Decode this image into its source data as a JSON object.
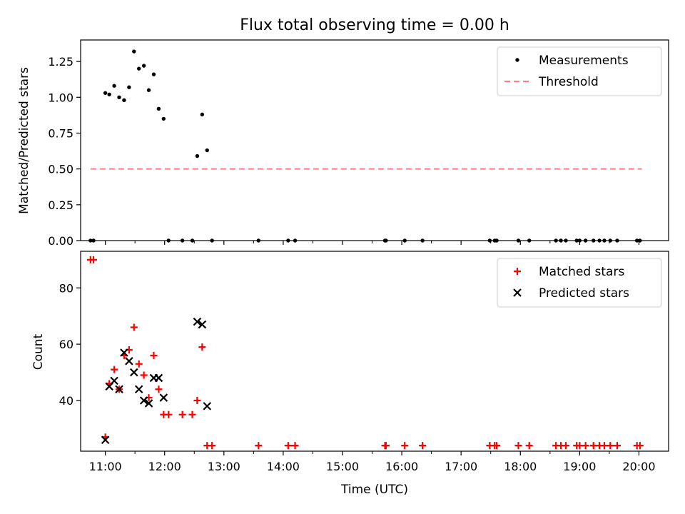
{
  "chart_data": [
    {
      "type": "scatter",
      "title": "Flux total observing time = 0.00 h",
      "xlabel": "",
      "ylabel": "Matched/Predicted stars",
      "xlim": [
        "10:35",
        "20:30"
      ],
      "ylim": [
        0,
        1.4
      ],
      "yticks": [
        0.0,
        0.25,
        0.5,
        0.75,
        1.0,
        1.25
      ],
      "ytick_labels": [
        "0.00",
        "0.25",
        "0.50",
        "0.75",
        "1.00",
        "1.25"
      ],
      "grid": false,
      "legend": {
        "placement": "top-right",
        "entries": [
          "Measurements",
          "Threshold"
        ]
      },
      "series": [
        {
          "name": "Measurements",
          "color": "#000000",
          "marker": "dot",
          "points": [
            [
              "10:45",
              0.0
            ],
            [
              "10:48",
              0.0
            ],
            [
              "11:00",
              1.03
            ],
            [
              "11:04",
              1.02
            ],
            [
              "11:09",
              1.08
            ],
            [
              "11:14",
              1.0
            ],
            [
              "11:19",
              0.98
            ],
            [
              "11:24",
              1.07
            ],
            [
              "11:29",
              1.32
            ],
            [
              "11:34",
              1.2
            ],
            [
              "11:39",
              1.22
            ],
            [
              "11:44",
              1.05
            ],
            [
              "11:49",
              1.16
            ],
            [
              "11:54",
              0.92
            ],
            [
              "11:59",
              0.85
            ],
            [
              "12:04",
              0.0
            ],
            [
              "12:18",
              0.0
            ],
            [
              "12:28",
              0.0
            ],
            [
              "12:33",
              0.59
            ],
            [
              "12:38",
              0.88
            ],
            [
              "12:43",
              0.63
            ],
            [
              "12:48",
              0.0
            ],
            [
              "13:35",
              0.0
            ],
            [
              "14:05",
              0.0
            ],
            [
              "14:12",
              0.0
            ],
            [
              "15:43",
              0.0
            ],
            [
              "15:44",
              0.0
            ],
            [
              "16:03",
              0.0
            ],
            [
              "16:21",
              0.0
            ],
            [
              "17:29",
              0.0
            ],
            [
              "17:34",
              0.0
            ],
            [
              "17:36",
              0.0
            ],
            [
              "17:58",
              0.0
            ],
            [
              "18:09",
              0.0
            ],
            [
              "18:36",
              0.0
            ],
            [
              "18:41",
              0.0
            ],
            [
              "18:46",
              0.0
            ],
            [
              "18:57",
              0.0
            ],
            [
              "19:00",
              0.0
            ],
            [
              "19:06",
              0.0
            ],
            [
              "19:14",
              0.0
            ],
            [
              "19:20",
              0.0
            ],
            [
              "19:25",
              0.0
            ],
            [
              "19:31",
              0.0
            ],
            [
              "19:38",
              0.0
            ],
            [
              "19:58",
              0.0
            ],
            [
              "20:01",
              0.0
            ]
          ]
        },
        {
          "name": "Threshold",
          "color": "#ff7f7f",
          "style": "dashed",
          "points": [
            [
              "10:45",
              0.5
            ],
            [
              "20:03",
              0.5
            ]
          ]
        }
      ]
    },
    {
      "type": "scatter",
      "title": "",
      "xlabel": "Time (UTC)",
      "ylabel": "Count",
      "xlim": [
        "10:35",
        "20:30"
      ],
      "ylim": [
        22,
        93
      ],
      "yticks": [
        40,
        60,
        80
      ],
      "ytick_labels": [
        "40",
        "60",
        "80"
      ],
      "xticks": [
        "11:00",
        "12:00",
        "13:00",
        "14:00",
        "15:00",
        "16:00",
        "17:00",
        "18:00",
        "19:00",
        "20:00"
      ],
      "xtick_labels": [
        "11:00",
        "12:00",
        "13:00",
        "14:00",
        "15:00",
        "16:00",
        "17:00",
        "18:00",
        "19:00",
        "20:00"
      ],
      "grid": false,
      "legend": {
        "placement": "top-right",
        "entries": [
          "Matched stars",
          "Predicted stars"
        ]
      },
      "series": [
        {
          "name": "Matched stars",
          "color": "#ff0000",
          "marker": "plus",
          "points": [
            [
              "10:45",
              90
            ],
            [
              "10:48",
              90
            ],
            [
              "11:00",
              27
            ],
            [
              "11:04",
              46
            ],
            [
              "11:09",
              51
            ],
            [
              "11:14",
              44
            ],
            [
              "11:19",
              56
            ],
            [
              "11:24",
              58
            ],
            [
              "11:29",
              66
            ],
            [
              "11:34",
              53
            ],
            [
              "11:39",
              49
            ],
            [
              "11:44",
              41
            ],
            [
              "11:49",
              56
            ],
            [
              "11:54",
              44
            ],
            [
              "11:59",
              35
            ],
            [
              "12:04",
              35
            ],
            [
              "12:18",
              35
            ],
            [
              "12:28",
              35
            ],
            [
              "12:33",
              40
            ],
            [
              "12:38",
              59
            ],
            [
              "12:43",
              24
            ],
            [
              "12:48",
              24
            ],
            [
              "13:35",
              24
            ],
            [
              "14:05",
              24
            ],
            [
              "14:12",
              24
            ],
            [
              "15:43",
              24
            ],
            [
              "15:44",
              24
            ],
            [
              "16:03",
              24
            ],
            [
              "16:21",
              24
            ],
            [
              "17:29",
              24
            ],
            [
              "17:34",
              24
            ],
            [
              "17:36",
              24
            ],
            [
              "17:58",
              24
            ],
            [
              "18:09",
              24
            ],
            [
              "18:36",
              24
            ],
            [
              "18:41",
              24
            ],
            [
              "18:46",
              24
            ],
            [
              "18:57",
              24
            ],
            [
              "19:00",
              24
            ],
            [
              "19:06",
              24
            ],
            [
              "19:14",
              24
            ],
            [
              "19:20",
              24
            ],
            [
              "19:25",
              24
            ],
            [
              "19:31",
              24
            ],
            [
              "19:38",
              24
            ],
            [
              "19:58",
              24
            ],
            [
              "20:01",
              24
            ]
          ]
        },
        {
          "name": "Predicted stars",
          "color": "#000000",
          "marker": "x",
          "points": [
            [
              "11:00",
              26
            ],
            [
              "11:04",
              45
            ],
            [
              "11:09",
              47
            ],
            [
              "11:14",
              44
            ],
            [
              "11:19",
              57
            ],
            [
              "11:24",
              54
            ],
            [
              "11:29",
              50
            ],
            [
              "11:34",
              44
            ],
            [
              "11:39",
              40
            ],
            [
              "11:44",
              39
            ],
            [
              "11:49",
              48
            ],
            [
              "11:54",
              48
            ],
            [
              "11:59",
              41
            ],
            [
              "12:33",
              68
            ],
            [
              "12:38",
              67
            ],
            [
              "12:43",
              38
            ]
          ]
        }
      ]
    }
  ]
}
